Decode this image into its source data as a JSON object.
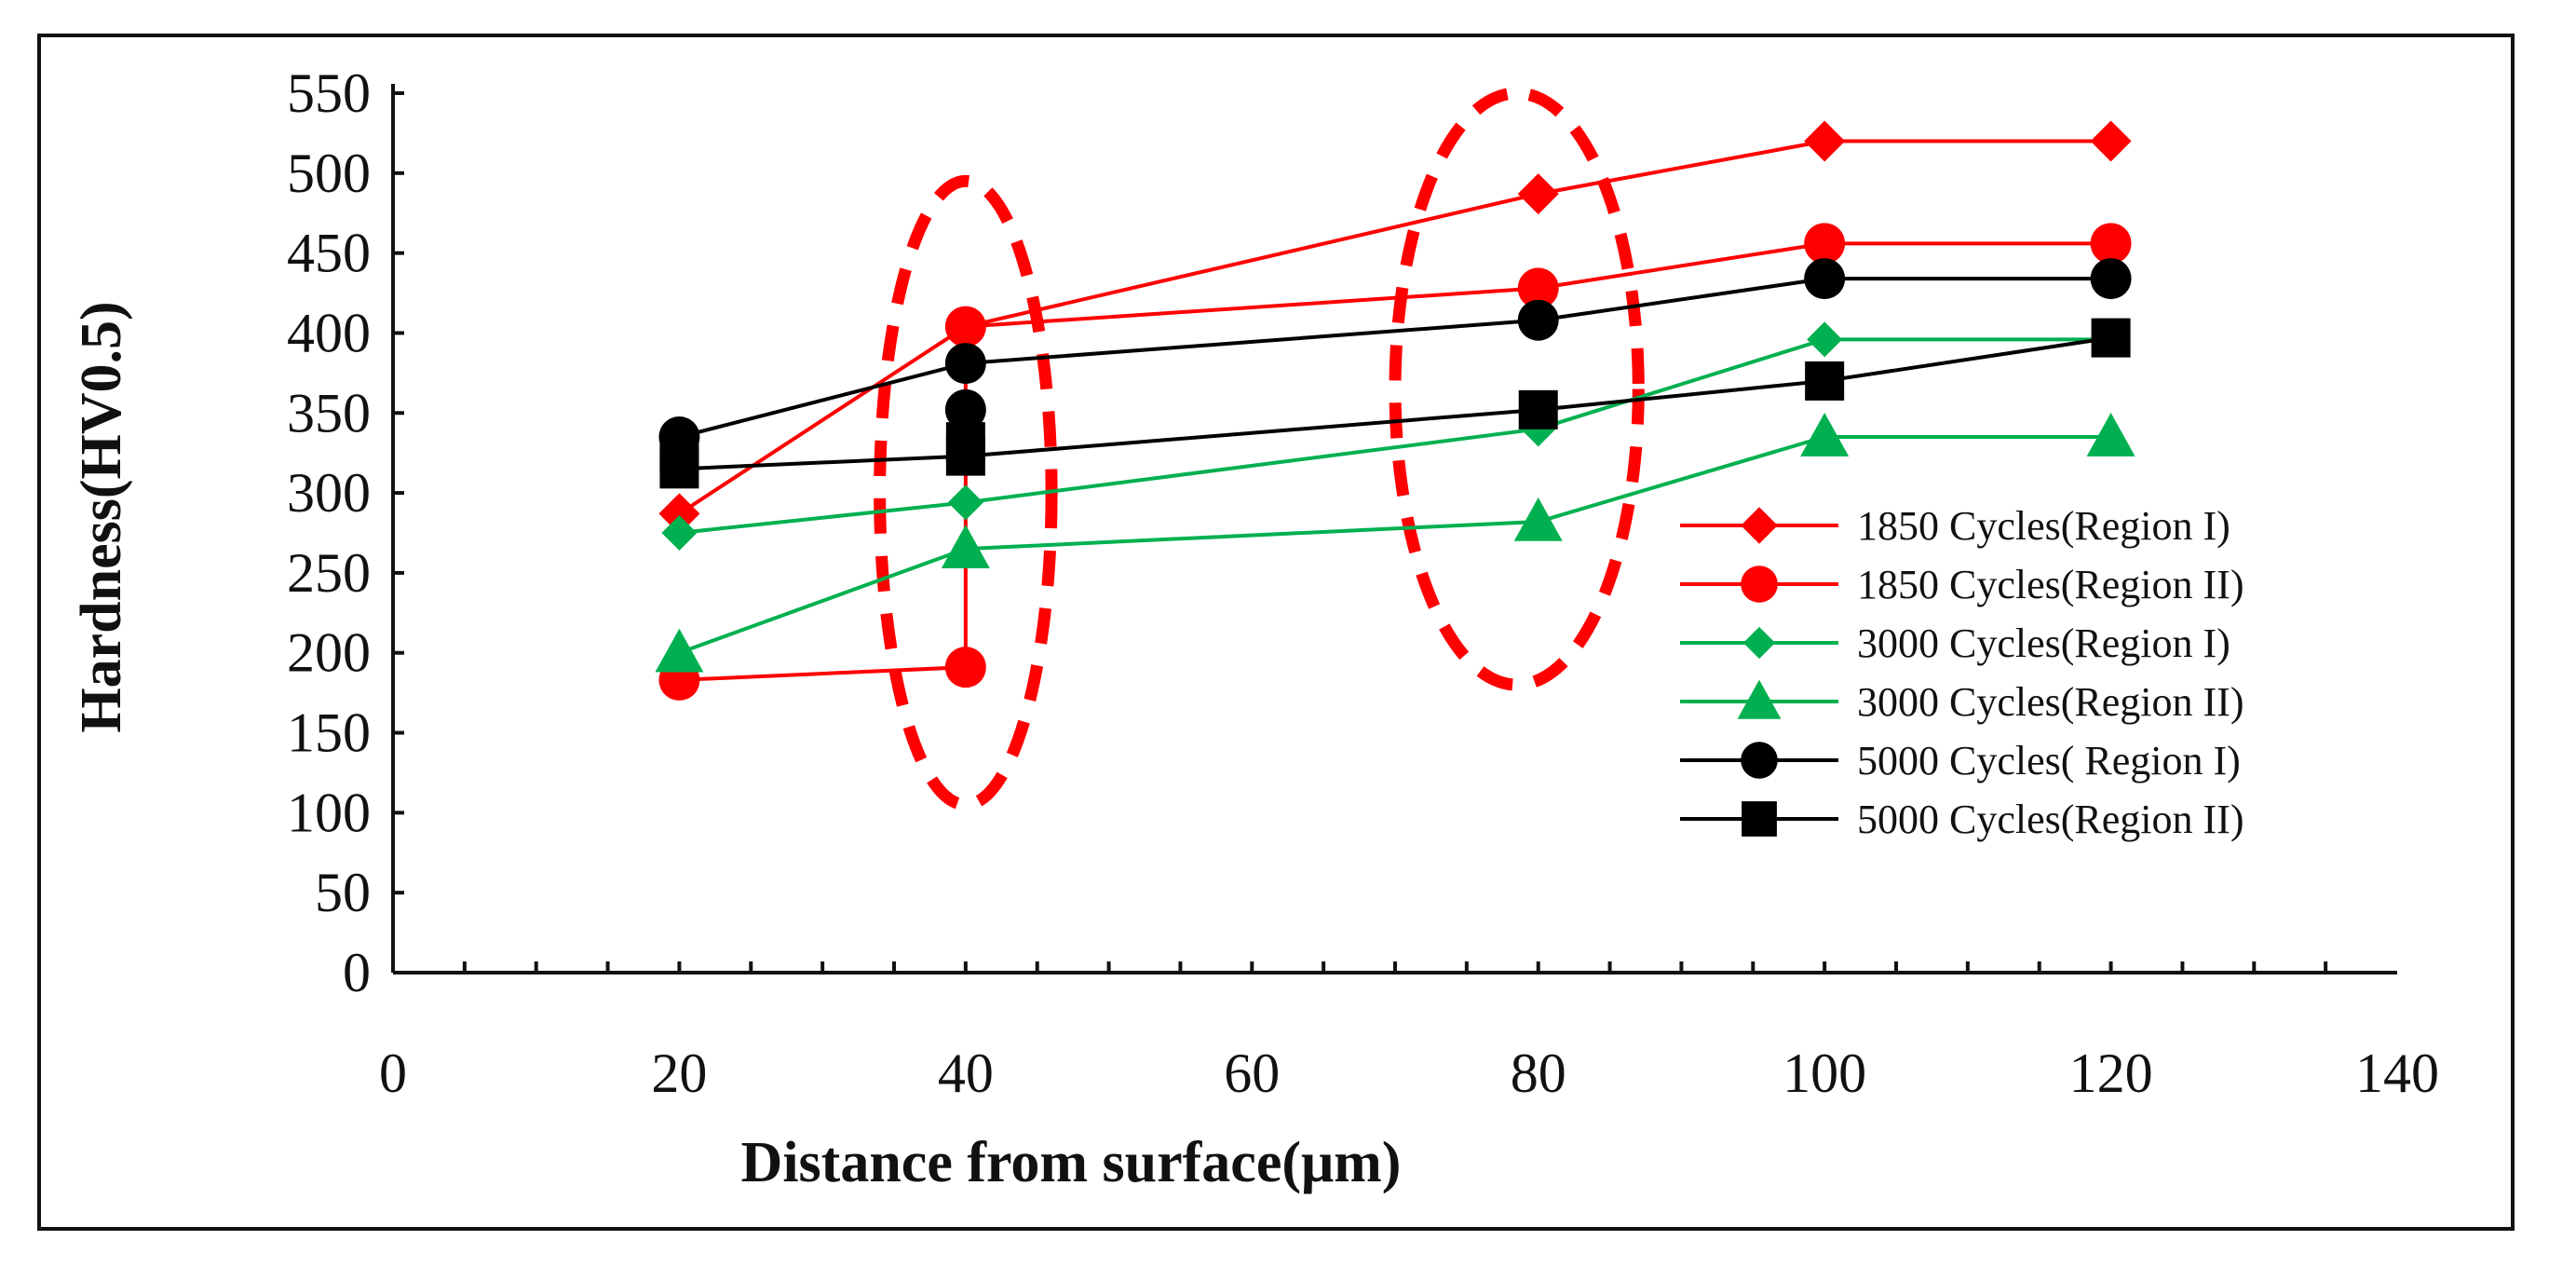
{
  "chart_data": {
    "type": "line",
    "title": "",
    "xlabel": "Distance from  surface(μm)",
    "ylabel": "Hardness(HV0.5)",
    "xlim": [
      0,
      140
    ],
    "ylim": [
      0,
      550
    ],
    "xticks": [
      0,
      20,
      40,
      60,
      80,
      100,
      120,
      140
    ],
    "yticks": [
      0,
      50,
      100,
      150,
      200,
      250,
      300,
      350,
      400,
      450,
      500,
      550
    ],
    "xtick_labels": [
      "0",
      "20",
      "40",
      "60",
      "80",
      "100",
      "120",
      "140"
    ],
    "ytick_labels": [
      "0",
      "50",
      "100",
      "150",
      "200",
      "250",
      "300",
      "350",
      "400",
      "450",
      "500",
      "550"
    ],
    "grid": false,
    "legend_position": "right",
    "series": [
      {
        "name": "1850 Cycles(Region I)",
        "color": "#ff0000",
        "marker": "diamond",
        "x": [
          20,
          40,
          80,
          100,
          120
        ],
        "y": [
          287,
          404,
          487,
          520,
          520
        ]
      },
      {
        "name": "1850 Cycles(Region II)",
        "color": "#ff0000",
        "marker": "circle",
        "x": [
          20,
          40,
          40,
          80,
          100,
          120
        ],
        "y": [
          183,
          191,
          404,
          428,
          456,
          456
        ]
      },
      {
        "name": "3000 Cycles(Region I)",
        "color": "#00b050",
        "marker": "diamond-small",
        "x": [
          20,
          40,
          80,
          100,
          120
        ],
        "y": [
          275,
          294,
          340,
          396,
          396
        ]
      },
      {
        "name": "3000 Cycles(Region II)",
        "color": "#00b050",
        "marker": "triangle",
        "x": [
          20,
          40,
          80,
          100,
          120
        ],
        "y": [
          200,
          265,
          282,
          335,
          335
        ]
      },
      {
        "name": "5000 Cycles( Region I)",
        "color": "#000000",
        "marker": "circle",
        "x": [
          20,
          40,
          80,
          100,
          120
        ],
        "y": [
          335,
          381,
          408,
          434,
          434
        ]
      },
      {
        "name": "5000 Cycles(Region II)",
        "color": "#000000",
        "marker": "square",
        "x": [
          20,
          40,
          80,
          100,
          120
        ],
        "y": [
          315,
          323,
          352,
          370,
          397
        ]
      }
    ],
    "extra_points": [
      {
        "series": "5000 Cycles( Region I)",
        "x": 40,
        "y": 352
      },
      {
        "series": "5000 Cycles(Region II)",
        "x": 20,
        "y": 325
      },
      {
        "series": "5000 Cycles(Region II)",
        "x": 40,
        "y": 332
      }
    ],
    "annotations": [
      {
        "type": "dashed-ellipse",
        "color": "#ff0000",
        "cx": 40,
        "cy": 300,
        "rx": 6,
        "ry": 195
      },
      {
        "type": "dashed-ellipse",
        "color": "#ff0000",
        "cx": 78.5,
        "cy": 365,
        "rx": 8.5,
        "ry": 185
      }
    ]
  }
}
